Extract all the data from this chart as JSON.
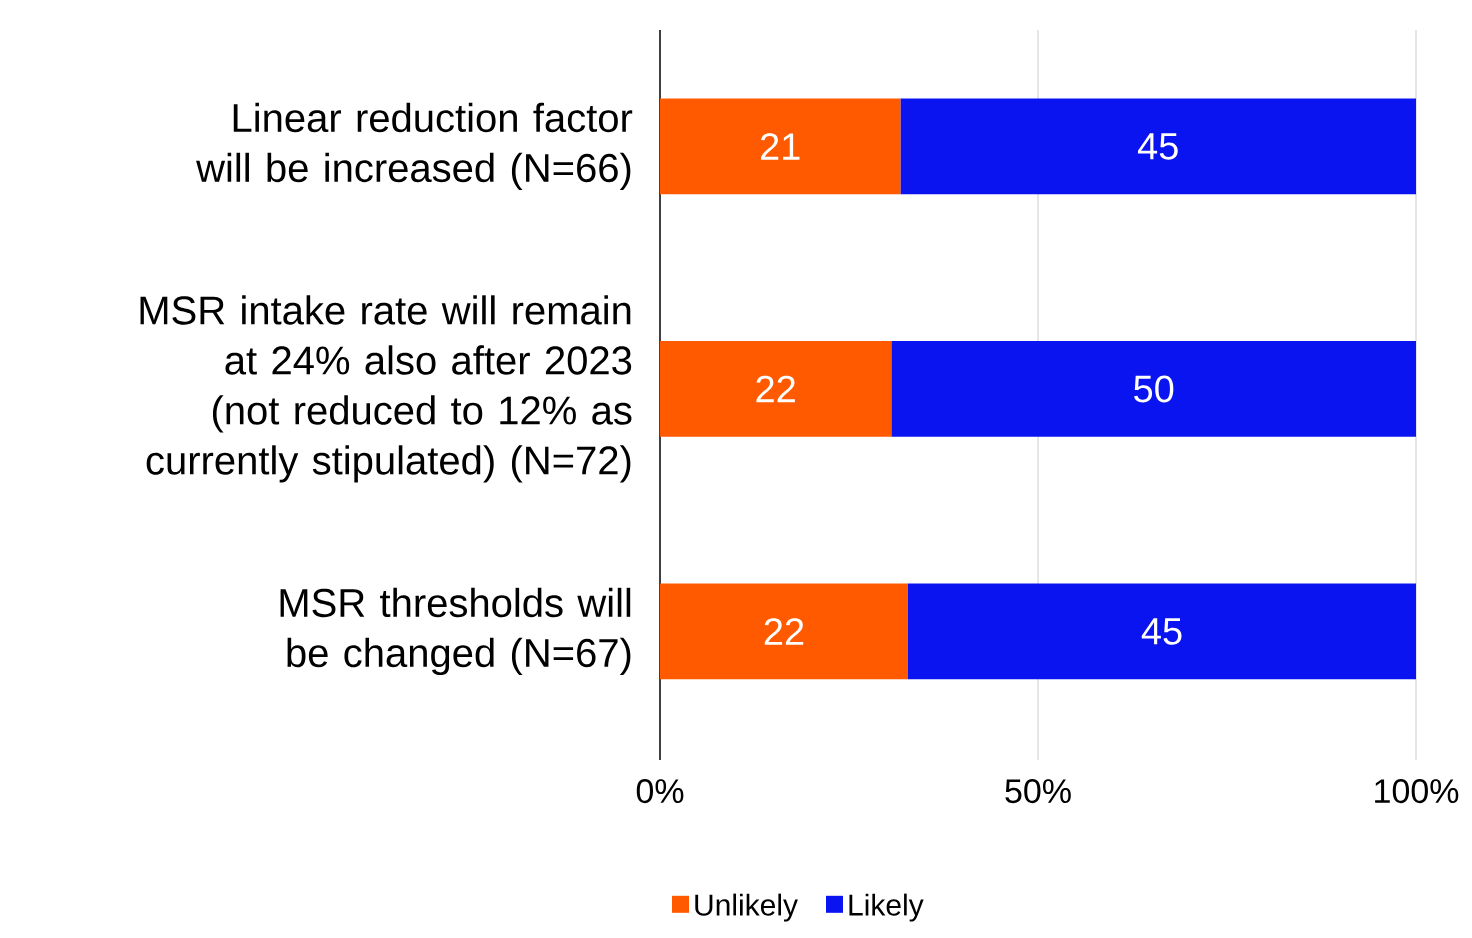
{
  "chart_data": {
    "type": "bar",
    "orientation": "horizontal",
    "stacked": true,
    "categories": [
      "Linear reduction factor will be increased (N=66)",
      "MSR intake rate will remain at 24% also after 2023 (not reduced to 12% as currently stipulated) (N=72)",
      "MSR thresholds will be changed (N=67)"
    ],
    "series": [
      {
        "name": "Unlikely",
        "color": "#ff5a00",
        "values": [
          31.8,
          30.6,
          32.8
        ]
      },
      {
        "name": "Likely",
        "color": "#0a14f0",
        "values": [
          68.2,
          69.4,
          67.2
        ]
      }
    ],
    "annotations": [
      "21",
      "45",
      "22",
      "50",
      "22",
      "45"
    ],
    "xlim": [
      0,
      100
    ],
    "xticks": [
      {
        "value": 0,
        "label": "0%"
      },
      {
        "value": 50,
        "label": "50%"
      },
      {
        "value": 100,
        "label": "100%"
      }
    ],
    "grid": "x",
    "legend": "bottom"
  }
}
